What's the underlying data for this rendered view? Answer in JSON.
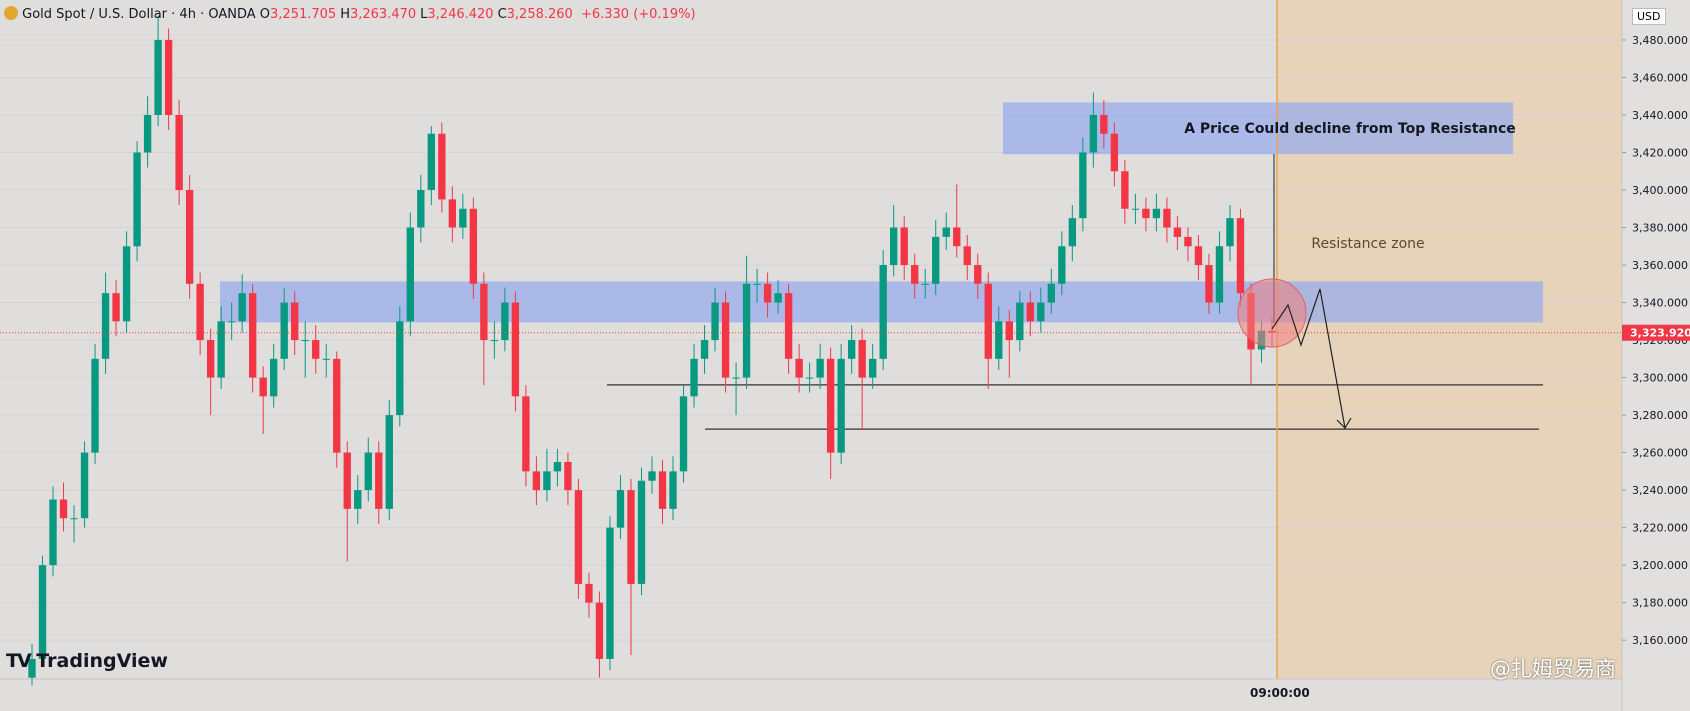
{
  "header": {
    "symbol": "Gold Spot / U.S. Dollar · 4h · OANDA",
    "ohlc": [
      {
        "key": "O",
        "value": "3,251.705"
      },
      {
        "key": "H",
        "value": "3,263.470"
      },
      {
        "key": "L",
        "value": "3,246.420"
      },
      {
        "key": "C",
        "value": "3,258.260"
      }
    ],
    "change": "+6.330 (+0.19%)"
  },
  "currency": "USD",
  "branding": "TradingView",
  "watermark": "@扎姆贸易商",
  "crosshair_time": "09:00:00",
  "chart_data": {
    "type": "candlestick",
    "up_color": "#089981",
    "down_color": "#f23645",
    "ylim": [
      3139.3,
      3501.3
    ],
    "yticks": [
      {
        "value": 3160,
        "label": "3,160.000"
      },
      {
        "value": 3180,
        "label": "3,180.000"
      },
      {
        "value": 3200,
        "label": "3,200.000"
      },
      {
        "value": 3220,
        "label": "3,220.000"
      },
      {
        "value": 3240,
        "label": "3,240.000"
      },
      {
        "value": 3260,
        "label": "3,260.000"
      },
      {
        "value": 3280,
        "label": "3,280.000"
      },
      {
        "value": 3300,
        "label": "3,300.000"
      },
      {
        "value": 3320,
        "label": "3,320.000"
      },
      {
        "value": 3340,
        "label": "3,340.000"
      },
      {
        "value": 3360,
        "label": "3,360.000"
      },
      {
        "value": 3380,
        "label": "3,380.000"
      },
      {
        "value": 3400,
        "label": "3,400.000"
      },
      {
        "value": 3420,
        "label": "3,420.000"
      },
      {
        "value": 3440,
        "label": "3,440.000"
      },
      {
        "value": 3460,
        "label": "3,460.000"
      },
      {
        "value": 3480,
        "label": "3,480.000"
      }
    ],
    "grid": true,
    "last_price": {
      "value": 3323.92,
      "label": "3,323.920"
    },
    "zones": [
      {
        "top": 3446.7,
        "bottom": 3419.1,
        "color": "#8fa6f0"
      },
      {
        "top": 3351.3,
        "bottom": 3329.4,
        "color": "#8fa6f0"
      }
    ],
    "levels": [
      3296.1,
      3272.5
    ],
    "annotations": [
      "A Price Could decline from Top Resistance",
      "Resistance zone"
    ],
    "ohlc": [
      [
        3140,
        3158,
        3136,
        3150
      ],
      [
        3150,
        3205,
        3146,
        3200
      ],
      [
        3200,
        3242,
        3194,
        3235
      ],
      [
        3235,
        3244,
        3218,
        3225
      ],
      [
        3225,
        3232,
        3212,
        3225
      ],
      [
        3225,
        3266,
        3220,
        3260
      ],
      [
        3260,
        3318,
        3254,
        3310
      ],
      [
        3310,
        3356,
        3302,
        3345
      ],
      [
        3345,
        3352,
        3322,
        3330
      ],
      [
        3330,
        3378,
        3324,
        3370
      ],
      [
        3370,
        3426,
        3362,
        3420
      ],
      [
        3420,
        3450,
        3412,
        3440
      ],
      [
        3440,
        3493,
        3434,
        3480
      ],
      [
        3480,
        3486,
        3432,
        3440
      ],
      [
        3440,
        3448,
        3392,
        3400
      ],
      [
        3400,
        3408,
        3342,
        3350
      ],
      [
        3350,
        3356,
        3312,
        3320
      ],
      [
        3320,
        3326,
        3280,
        3300
      ],
      [
        3300,
        3338,
        3294,
        3330
      ],
      [
        3330,
        3340,
        3320,
        3330
      ],
      [
        3330,
        3355,
        3324,
        3345
      ],
      [
        3345,
        3350,
        3292,
        3300
      ],
      [
        3300,
        3306,
        3270,
        3290
      ],
      [
        3290,
        3318,
        3284,
        3310
      ],
      [
        3310,
        3348,
        3304,
        3340
      ],
      [
        3340,
        3346,
        3312,
        3320
      ],
      [
        3320,
        3330,
        3300,
        3320
      ],
      [
        3320,
        3328,
        3302,
        3310
      ],
      [
        3310,
        3318,
        3300,
        3310
      ],
      [
        3310,
        3314,
        3252,
        3260
      ],
      [
        3260,
        3266,
        3202,
        3230
      ],
      [
        3230,
        3248,
        3222,
        3240
      ],
      [
        3240,
        3268,
        3234,
        3260
      ],
      [
        3260,
        3266,
        3222,
        3230
      ],
      [
        3230,
        3288,
        3224,
        3280
      ],
      [
        3280,
        3338,
        3274,
        3330
      ],
      [
        3330,
        3388,
        3322,
        3380
      ],
      [
        3380,
        3408,
        3372,
        3400
      ],
      [
        3400,
        3434,
        3392,
        3430
      ],
      [
        3430,
        3436,
        3388,
        3395
      ],
      [
        3395,
        3402,
        3372,
        3380
      ],
      [
        3380,
        3398,
        3374,
        3390
      ],
      [
        3390,
        3396,
        3342,
        3350
      ],
      [
        3350,
        3356,
        3296,
        3320
      ],
      [
        3320,
        3330,
        3310,
        3320
      ],
      [
        3320,
        3348,
        3314,
        3340
      ],
      [
        3340,
        3346,
        3282,
        3290
      ],
      [
        3290,
        3296,
        3242,
        3250
      ],
      [
        3250,
        3258,
        3232,
        3240
      ],
      [
        3240,
        3262,
        3234,
        3250
      ],
      [
        3250,
        3262,
        3242,
        3255
      ],
      [
        3255,
        3260,
        3232,
        3240
      ],
      [
        3240,
        3246,
        3182,
        3190
      ],
      [
        3190,
        3196,
        3172,
        3180
      ],
      [
        3180,
        3186,
        3140,
        3150
      ],
      [
        3150,
        3226,
        3144,
        3220
      ],
      [
        3220,
        3248,
        3214,
        3240
      ],
      [
        3240,
        3246,
        3152,
        3190
      ],
      [
        3190,
        3252,
        3184,
        3245
      ],
      [
        3245,
        3258,
        3238,
        3250
      ],
      [
        3250,
        3256,
        3222,
        3230
      ],
      [
        3230,
        3258,
        3224,
        3250
      ],
      [
        3250,
        3296,
        3244,
        3290
      ],
      [
        3290,
        3318,
        3284,
        3310
      ],
      [
        3310,
        3328,
        3302,
        3320
      ],
      [
        3320,
        3348,
        3314,
        3340
      ],
      [
        3340,
        3346,
        3292,
        3300
      ],
      [
        3300,
        3308,
        3280,
        3300
      ],
      [
        3300,
        3365,
        3294,
        3350
      ],
      [
        3350,
        3358,
        3340,
        3350
      ],
      [
        3350,
        3356,
        3332,
        3340
      ],
      [
        3340,
        3352,
        3334,
        3345
      ],
      [
        3345,
        3350,
        3302,
        3310
      ],
      [
        3310,
        3318,
        3292,
        3300
      ],
      [
        3300,
        3308,
        3292,
        3300
      ],
      [
        3300,
        3318,
        3294,
        3310
      ],
      [
        3310,
        3316,
        3246,
        3260
      ],
      [
        3260,
        3318,
        3254,
        3310
      ],
      [
        3310,
        3328,
        3302,
        3320
      ],
      [
        3320,
        3326,
        3272,
        3300
      ],
      [
        3300,
        3318,
        3294,
        3310
      ],
      [
        3310,
        3368,
        3304,
        3360
      ],
      [
        3360,
        3392,
        3354,
        3380
      ],
      [
        3380,
        3386,
        3352,
        3360
      ],
      [
        3360,
        3366,
        3342,
        3350
      ],
      [
        3350,
        3358,
        3342,
        3350
      ],
      [
        3350,
        3384,
        3344,
        3375
      ],
      [
        3375,
        3388,
        3368,
        3380
      ],
      [
        3380,
        3403,
        3364,
        3370
      ],
      [
        3370,
        3376,
        3352,
        3360
      ],
      [
        3360,
        3366,
        3342,
        3350
      ],
      [
        3350,
        3356,
        3294,
        3310
      ],
      [
        3310,
        3338,
        3304,
        3330
      ],
      [
        3330,
        3336,
        3300,
        3320
      ],
      [
        3320,
        3346,
        3314,
        3340
      ],
      [
        3340,
        3346,
        3322,
        3330
      ],
      [
        3330,
        3348,
        3324,
        3340
      ],
      [
        3340,
        3358,
        3334,
        3350
      ],
      [
        3350,
        3378,
        3344,
        3370
      ],
      [
        3370,
        3392,
        3362,
        3385
      ],
      [
        3385,
        3428,
        3378,
        3420
      ],
      [
        3420,
        3452,
        3412,
        3440
      ],
      [
        3440,
        3448,
        3422,
        3430
      ],
      [
        3430,
        3436,
        3402,
        3410
      ],
      [
        3410,
        3416,
        3382,
        3390
      ],
      [
        3390,
        3398,
        3382,
        3390
      ],
      [
        3390,
        3396,
        3378,
        3385
      ],
      [
        3385,
        3398,
        3378,
        3390
      ],
      [
        3390,
        3396,
        3372,
        3380
      ],
      [
        3380,
        3386,
        3368,
        3375
      ],
      [
        3375,
        3380,
        3362,
        3370
      ],
      [
        3370,
        3376,
        3352,
        3360
      ],
      [
        3360,
        3366,
        3334,
        3340
      ],
      [
        3340,
        3378,
        3334,
        3370
      ],
      [
        3370,
        3392,
        3362,
        3385
      ],
      [
        3385,
        3390,
        3338,
        3345
      ],
      [
        3345,
        3350,
        3296,
        3315
      ],
      [
        3315,
        3330,
        3308,
        3325
      ],
      [
        3325,
        3332,
        3316,
        3323.92
      ]
    ]
  }
}
